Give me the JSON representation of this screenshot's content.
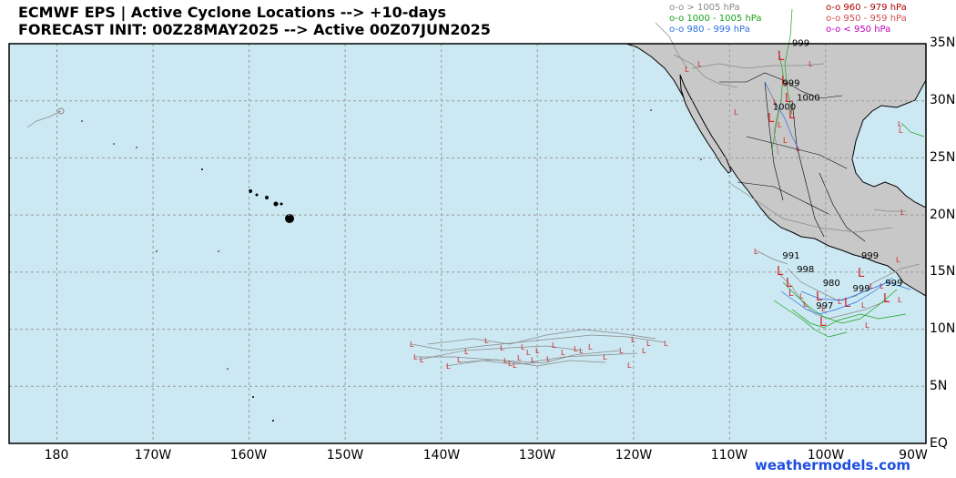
{
  "header": {
    "title_line1": "ECMWF EPS | Active Cyclone Locations --> +10-days",
    "title_line2": "FORECAST INIT: 00Z28MAY2025 --> Active 00Z07JUN2025"
  },
  "legend": [
    {
      "text": "o-o > 1005 hPa",
      "color": "#888888"
    },
    {
      "text": "o-o 1000 - 1005 hPa",
      "color": "#1aa31a"
    },
    {
      "text": "o-o 980 - 999 hPa",
      "color": "#2a6fe0"
    },
    {
      "text": "o-o 960 - 979 hPa",
      "color": "#b00000"
    },
    {
      "text": "o-o 950 - 959 hPa",
      "color": "#d05050"
    },
    {
      "text": "o-o < 950 hPa",
      "color": "#c000c0"
    }
  ],
  "axes": {
    "lat_labels": [
      "35N",
      "30N",
      "25N",
      "20N",
      "15N",
      "10N",
      "5N",
      "EQ"
    ],
    "lon_labels": [
      "180",
      "170W",
      "160W",
      "150W",
      "140W",
      "130W",
      "120W",
      "110W",
      "100W",
      "90W"
    ]
  },
  "pressure_labels": [
    {
      "text": "999",
      "lon": -103.5,
      "lat": 34.8
    },
    {
      "text": "999",
      "lon": -104.5,
      "lat": 31.3
    },
    {
      "text": "1000",
      "lon": -103.0,
      "lat": 30.0
    },
    {
      "text": "1000",
      "lon": -105.5,
      "lat": 29.2
    },
    {
      "text": "991",
      "lon": -104.5,
      "lat": 16.2
    },
    {
      "text": "998",
      "lon": -103.0,
      "lat": 15.0
    },
    {
      "text": "980",
      "lon": -100.3,
      "lat": 13.8
    },
    {
      "text": "999",
      "lon": -96.3,
      "lat": 16.2
    },
    {
      "text": "999",
      "lon": -93.8,
      "lat": 13.8
    },
    {
      "text": "999",
      "lon": -97.2,
      "lat": 13.3
    },
    {
      "text": "997",
      "lon": -101.0,
      "lat": 11.8
    }
  ],
  "colors": {
    "ocean": "#cce8f2",
    "land": "#c8c8c8",
    "grid": "#9a9a9a",
    "tracks_main": "#888888",
    "tracks_green": "#1aa31a",
    "tracks_blue": "#2a6fe0",
    "marker": "#d22020"
  },
  "credit": "weathermodels.com"
}
